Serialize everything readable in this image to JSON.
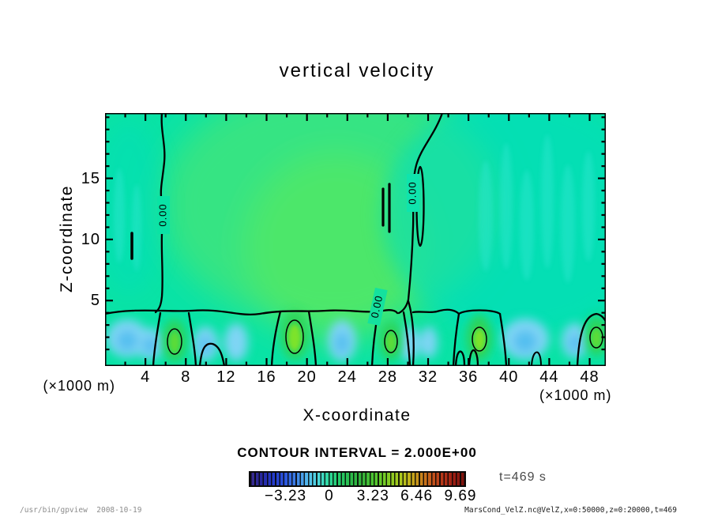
{
  "chart_data": {
    "type": "heatmap",
    "title": "vertical velocity",
    "xlabel": "X-coordinate",
    "ylabel": "Z-coordinate",
    "x_unit": "(×1000 m)",
    "xlim": [
      0,
      49.6
    ],
    "ylim": [
      0,
      20.3
    ],
    "x_major_ticks": [
      4,
      8,
      12,
      16,
      20,
      24,
      28,
      32,
      36,
      40,
      44,
      48
    ],
    "x_minor_step": 2,
    "y_major_ticks": [
      5,
      10,
      15
    ],
    "y_minor_step": 1,
    "grid": false,
    "legend": "none, colorbar below plot",
    "contour_interval_text": "CONTOUR INTERVAL = 2.000E+00",
    "contour_line_label": "0.00",
    "time_label": "t=469 s",
    "colorbar": {
      "tick_labels": [
        "−3.23",
        "0",
        "3.23",
        "6.46",
        "9.69"
      ],
      "tick_values": [
        -3.23,
        0,
        3.23,
        6.46,
        9.69
      ],
      "style": "striped spectrum: dark indigo, blue, light blue, cyan, green, lime, olive-yellow, orange, red, dark red"
    },
    "field_summary": {
      "zero_contour_labels_shown": 3,
      "upper_region": "broad weak positive (green) updraft over x≈8–28, slightly cyan elsewhere",
      "lower_band": "alternating cells below z≈4: positive green cores near x≈7, 18, 28, 38, 48 and negative light-blue cells between"
    }
  },
  "footer": {
    "program": "/usr/bin/gpview",
    "date": "2008-10-19",
    "right": "MarsCond_VelZ.nc@VelZ,x=0:50000,z=0:20000,t=469"
  }
}
